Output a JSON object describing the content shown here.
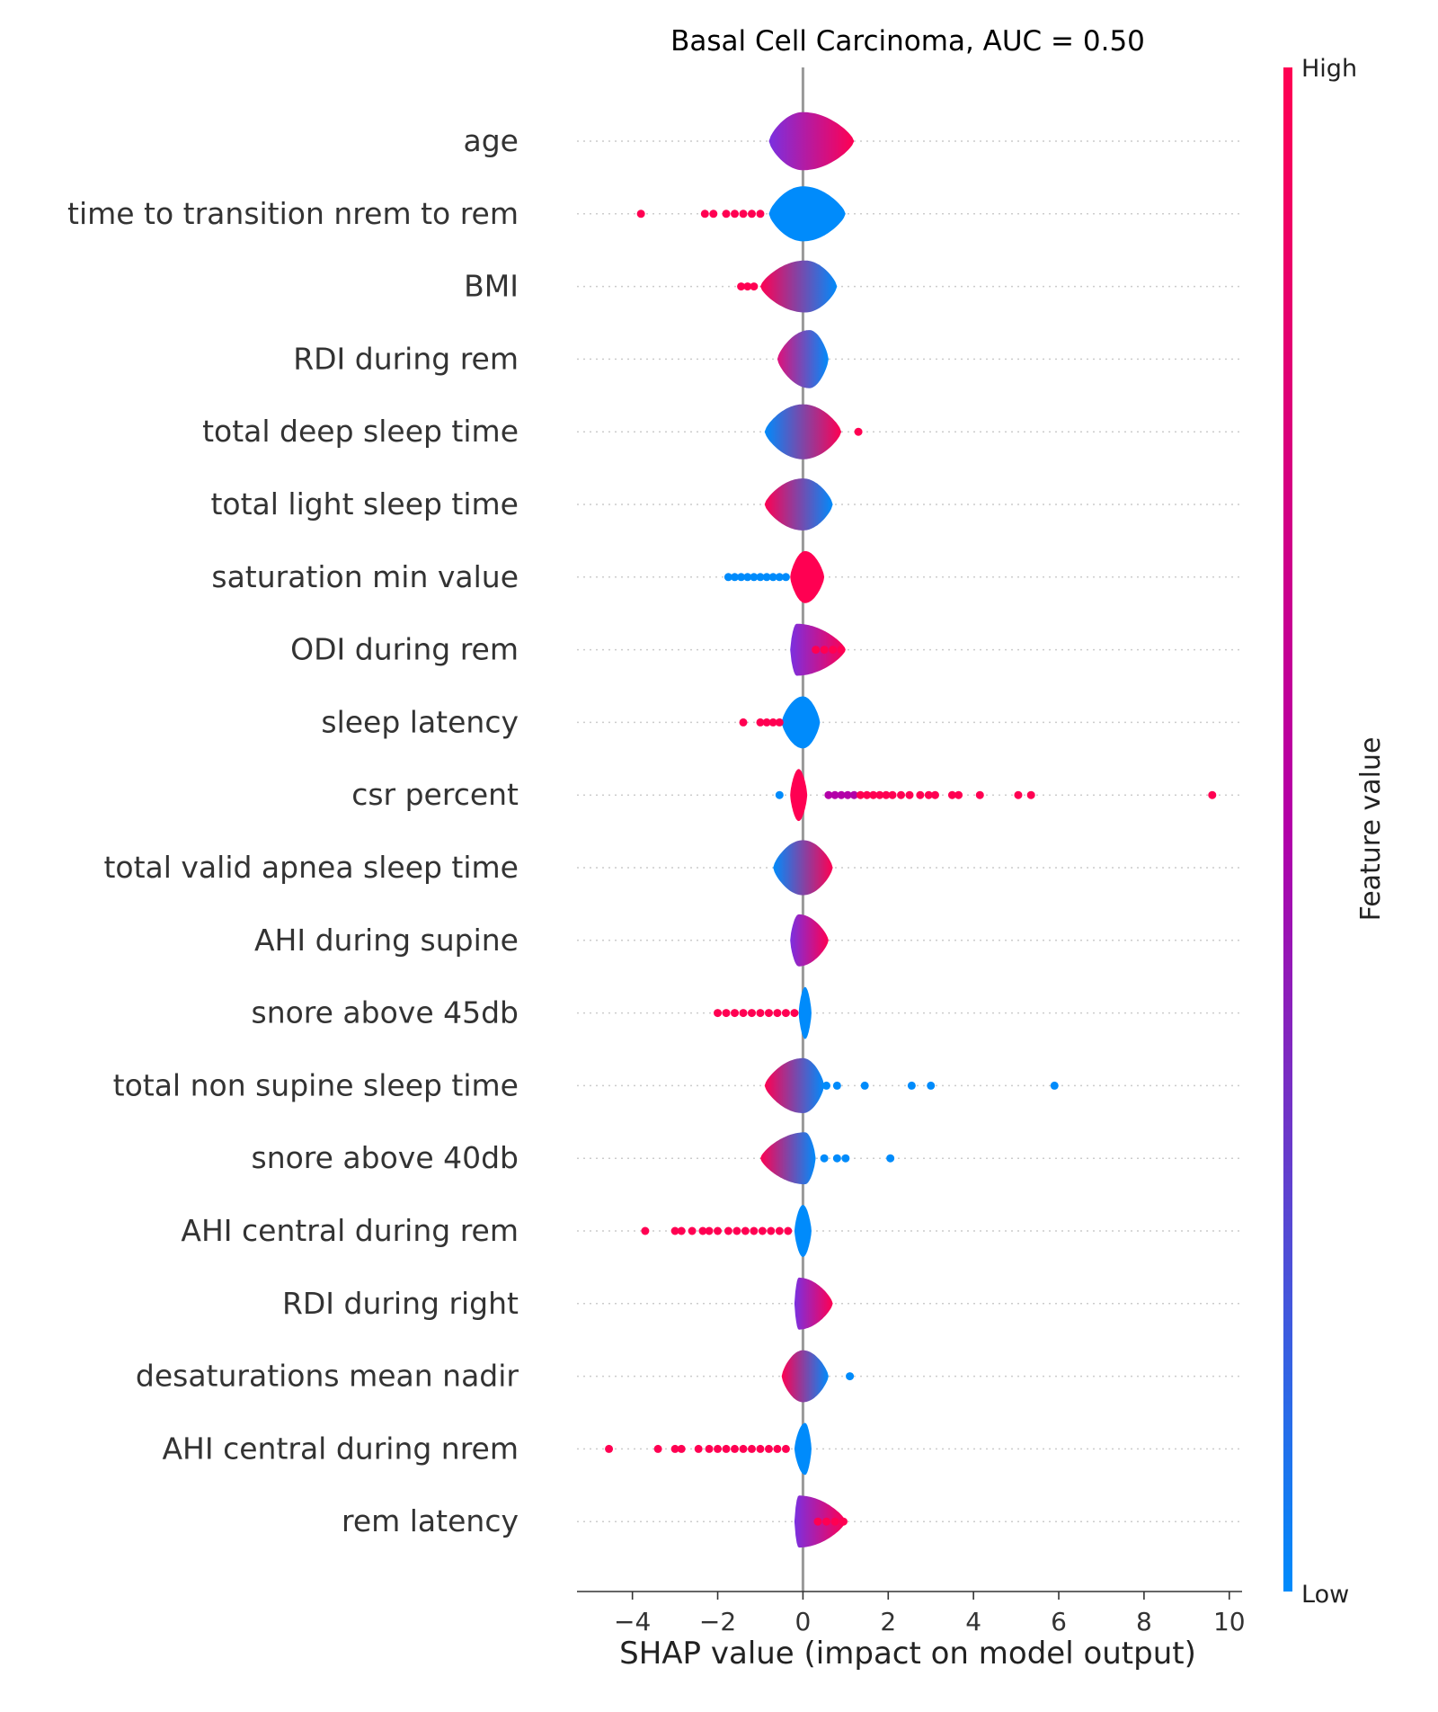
{
  "chart_data": {
    "type": "scatter",
    "subtype": "shap-beeswarm",
    "title": "Basal Cell Carcinoma, AUC =  0.50",
    "xlabel": "SHAP value (impact on model output)",
    "xlim": [
      -5.3,
      10.3
    ],
    "xticks": [
      {
        "value": -4,
        "label": "−4"
      },
      {
        "value": -2,
        "label": "−2"
      },
      {
        "value": 0,
        "label": "0"
      },
      {
        "value": 2,
        "label": "2"
      },
      {
        "value": 4,
        "label": "4"
      },
      {
        "value": 6,
        "label": "6"
      },
      {
        "value": 8,
        "label": "8"
      },
      {
        "value": 10,
        "label": "10"
      }
    ],
    "zero_line": true,
    "colorbar": {
      "label": "Feature value",
      "high_label": "High",
      "low_label": "Low",
      "high_color": "#ff0052",
      "mid_color": "#b300a8",
      "low_color": "#008bfb"
    },
    "features": [
      {
        "name": "age",
        "body": {
          "min": -0.8,
          "max": 1.2,
          "center": 0.0,
          "halfwidth": 0.95,
          "lean": 0.4,
          "left_color": "#7a30e0",
          "right_color": "#ff0052"
        },
        "points": []
      },
      {
        "name": "time to transition nrem to rem",
        "body": {
          "min": -0.8,
          "max": 1.0,
          "center": 0.0,
          "halfwidth": 0.9,
          "lean": 0.0,
          "left_color": "#008bfb",
          "right_color": "#008bfb"
        },
        "points": [
          {
            "x": -3.8,
            "c": "high"
          },
          {
            "x": -2.3,
            "c": "high"
          },
          {
            "x": -2.1,
            "c": "high"
          },
          {
            "x": -1.8,
            "c": "high"
          },
          {
            "x": -1.6,
            "c": "high"
          },
          {
            "x": -1.4,
            "c": "high"
          },
          {
            "x": -1.2,
            "c": "high"
          },
          {
            "x": -1.0,
            "c": "high"
          }
        ]
      },
      {
        "name": "BMI",
        "body": {
          "min": -1.0,
          "max": 0.8,
          "center": 0.05,
          "halfwidth": 0.85,
          "lean": 0.0,
          "left_color": "#ff0052",
          "right_color": "#008bfb"
        },
        "points": [
          {
            "x": -1.45,
            "c": "high"
          },
          {
            "x": -1.3,
            "c": "high"
          },
          {
            "x": -1.15,
            "c": "high"
          }
        ]
      },
      {
        "name": "RDI during rem",
        "body": {
          "min": -0.6,
          "max": 0.6,
          "center": 0.15,
          "halfwidth": 0.95,
          "lean": 0.0,
          "left_color": "#e0107a",
          "right_color": "#008bfb"
        },
        "points": []
      },
      {
        "name": "total deep sleep time",
        "body": {
          "min": -0.9,
          "max": 0.9,
          "center": 0.0,
          "halfwidth": 0.9,
          "lean": 0.0,
          "left_color": "#008bfb",
          "right_color": "#ff0052"
        },
        "points": [
          {
            "x": 1.3,
            "c": "high"
          }
        ]
      },
      {
        "name": "total light sleep time",
        "body": {
          "min": -0.9,
          "max": 0.7,
          "center": 0.0,
          "halfwidth": 0.85,
          "lean": 0.0,
          "left_color": "#ff0052",
          "right_color": "#008bfb"
        },
        "points": []
      },
      {
        "name": "saturation min value",
        "body": {
          "min": -0.3,
          "max": 0.5,
          "center": 0.05,
          "halfwidth": 0.85,
          "lean": 0.0,
          "left_color": "#ff0052",
          "right_color": "#ff0052"
        },
        "points": [
          {
            "x": -1.75,
            "c": "low"
          },
          {
            "x": -1.6,
            "c": "low"
          },
          {
            "x": -1.45,
            "c": "low"
          },
          {
            "x": -1.3,
            "c": "low"
          },
          {
            "x": -1.15,
            "c": "low"
          },
          {
            "x": -1.0,
            "c": "low"
          },
          {
            "x": -0.85,
            "c": "low"
          },
          {
            "x": -0.7,
            "c": "low"
          },
          {
            "x": -0.55,
            "c": "low"
          },
          {
            "x": -0.4,
            "c": "low"
          }
        ]
      },
      {
        "name": "ODI during rem",
        "body": {
          "min": -0.3,
          "max": 1.0,
          "center": -0.15,
          "halfwidth": 0.85,
          "lean": 0.0,
          "left_color": "#7a30e0",
          "right_color": "#ff0052"
        },
        "points": [
          {
            "x": 0.3,
            "c": "high"
          },
          {
            "x": 0.5,
            "c": "high"
          },
          {
            "x": 0.7,
            "c": "high"
          },
          {
            "x": 0.9,
            "c": "high"
          }
        ]
      },
      {
        "name": "sleep latency",
        "body": {
          "min": -0.5,
          "max": 0.4,
          "center": 0.0,
          "halfwidth": 0.85,
          "lean": 0.0,
          "left_color": "#008bfb",
          "right_color": "#008bfb"
        },
        "points": [
          {
            "x": -1.4,
            "c": "high"
          },
          {
            "x": -1.0,
            "c": "high"
          },
          {
            "x": -0.85,
            "c": "high"
          },
          {
            "x": -0.7,
            "c": "high"
          },
          {
            "x": -0.55,
            "c": "high"
          }
        ]
      },
      {
        "name": "csr percent",
        "body": {
          "min": -0.3,
          "max": 0.1,
          "center": -0.1,
          "halfwidth": 0.85,
          "lean": 0.0,
          "left_color": "#ff0052",
          "right_color": "#ff0052"
        },
        "points": [
          {
            "x": -0.55,
            "c": "low"
          },
          {
            "x": 0.6,
            "c": "mid"
          },
          {
            "x": 0.75,
            "c": "mid"
          },
          {
            "x": 0.9,
            "c": "mid"
          },
          {
            "x": 1.05,
            "c": "mid"
          },
          {
            "x": 1.2,
            "c": "mid"
          },
          {
            "x": 1.35,
            "c": "high"
          },
          {
            "x": 1.5,
            "c": "high"
          },
          {
            "x": 1.65,
            "c": "high"
          },
          {
            "x": 1.8,
            "c": "high"
          },
          {
            "x": 1.95,
            "c": "high"
          },
          {
            "x": 2.1,
            "c": "high"
          },
          {
            "x": 2.3,
            "c": "high"
          },
          {
            "x": 2.5,
            "c": "high"
          },
          {
            "x": 2.75,
            "c": "high"
          },
          {
            "x": 2.95,
            "c": "high"
          },
          {
            "x": 3.1,
            "c": "high"
          },
          {
            "x": 3.5,
            "c": "high"
          },
          {
            "x": 3.65,
            "c": "high"
          },
          {
            "x": 4.15,
            "c": "high"
          },
          {
            "x": 5.05,
            "c": "high"
          },
          {
            "x": 5.35,
            "c": "high"
          },
          {
            "x": 9.6,
            "c": "high"
          }
        ]
      },
      {
        "name": "total valid apnea sleep time",
        "body": {
          "min": -0.7,
          "max": 0.7,
          "center": 0.0,
          "halfwidth": 0.9,
          "lean": 0.0,
          "left_color": "#008bfb",
          "right_color": "#ff0052"
        },
        "points": []
      },
      {
        "name": "AHI during supine",
        "body": {
          "min": -0.3,
          "max": 0.6,
          "center": -0.1,
          "halfwidth": 0.85,
          "lean": 0.0,
          "left_color": "#7a30e0",
          "right_color": "#ff0052"
        },
        "points": []
      },
      {
        "name": "snore above 45db",
        "body": {
          "min": -0.1,
          "max": 0.2,
          "center": 0.05,
          "halfwidth": 0.85,
          "lean": 0.0,
          "left_color": "#008bfb",
          "right_color": "#008bfb"
        },
        "points": [
          {
            "x": -2.0,
            "c": "high"
          },
          {
            "x": -1.8,
            "c": "high"
          },
          {
            "x": -1.6,
            "c": "high"
          },
          {
            "x": -1.4,
            "c": "high"
          },
          {
            "x": -1.2,
            "c": "high"
          },
          {
            "x": -1.0,
            "c": "high"
          },
          {
            "x": -0.8,
            "c": "high"
          },
          {
            "x": -0.6,
            "c": "high"
          },
          {
            "x": -0.4,
            "c": "high"
          },
          {
            "x": -0.2,
            "c": "high"
          }
        ]
      },
      {
        "name": "total non supine sleep time",
        "body": {
          "min": -0.9,
          "max": 0.5,
          "center": 0.0,
          "halfwidth": 0.9,
          "lean": 0.0,
          "left_color": "#ff0052",
          "right_color": "#008bfb"
        },
        "points": [
          {
            "x": 0.55,
            "c": "low"
          },
          {
            "x": 0.8,
            "c": "low"
          },
          {
            "x": 1.45,
            "c": "low"
          },
          {
            "x": 2.55,
            "c": "low"
          },
          {
            "x": 3.0,
            "c": "low"
          },
          {
            "x": 5.9,
            "c": "low"
          }
        ]
      },
      {
        "name": "snore above 40db",
        "body": {
          "min": -1.0,
          "max": 0.3,
          "center": 0.05,
          "halfwidth": 0.85,
          "lean": 0.0,
          "left_color": "#ff0052",
          "right_color": "#008bfb"
        },
        "points": [
          {
            "x": 0.5,
            "c": "low"
          },
          {
            "x": 0.8,
            "c": "low"
          },
          {
            "x": 1.0,
            "c": "low"
          },
          {
            "x": 2.05,
            "c": "low"
          }
        ]
      },
      {
        "name": "AHI central during rem",
        "body": {
          "min": -0.2,
          "max": 0.2,
          "center": 0.0,
          "halfwidth": 0.85,
          "lean": 0.0,
          "left_color": "#008bfb",
          "right_color": "#008bfb"
        },
        "points": [
          {
            "x": -3.7,
            "c": "high"
          },
          {
            "x": -3.0,
            "c": "high"
          },
          {
            "x": -2.85,
            "c": "high"
          },
          {
            "x": -2.6,
            "c": "high"
          },
          {
            "x": -2.35,
            "c": "high"
          },
          {
            "x": -2.2,
            "c": "high"
          },
          {
            "x": -2.0,
            "c": "high"
          },
          {
            "x": -1.75,
            "c": "high"
          },
          {
            "x": -1.55,
            "c": "high"
          },
          {
            "x": -1.35,
            "c": "high"
          },
          {
            "x": -1.15,
            "c": "high"
          },
          {
            "x": -0.95,
            "c": "high"
          },
          {
            "x": -0.75,
            "c": "high"
          },
          {
            "x": -0.55,
            "c": "high"
          },
          {
            "x": -0.35,
            "c": "high"
          }
        ]
      },
      {
        "name": "RDI during right",
        "body": {
          "min": -0.2,
          "max": 0.7,
          "center": -0.1,
          "halfwidth": 0.85,
          "lean": 0.0,
          "left_color": "#7a30e0",
          "right_color": "#ff0052"
        },
        "points": []
      },
      {
        "name": "desaturations mean nadir",
        "body": {
          "min": -0.5,
          "max": 0.6,
          "center": 0.0,
          "halfwidth": 0.85,
          "lean": 0.0,
          "left_color": "#ff0052",
          "right_color": "#008bfb"
        },
        "points": [
          {
            "x": 1.1,
            "c": "low"
          }
        ]
      },
      {
        "name": "AHI central during nrem",
        "body": {
          "min": -0.2,
          "max": 0.2,
          "center": 0.05,
          "halfwidth": 0.85,
          "lean": 0.0,
          "left_color": "#008bfb",
          "right_color": "#008bfb"
        },
        "points": [
          {
            "x": -4.55,
            "c": "high"
          },
          {
            "x": -3.4,
            "c": "high"
          },
          {
            "x": -3.0,
            "c": "high"
          },
          {
            "x": -2.85,
            "c": "high"
          },
          {
            "x": -2.45,
            "c": "high"
          },
          {
            "x": -2.2,
            "c": "high"
          },
          {
            "x": -2.0,
            "c": "high"
          },
          {
            "x": -1.8,
            "c": "high"
          },
          {
            "x": -1.6,
            "c": "high"
          },
          {
            "x": -1.4,
            "c": "high"
          },
          {
            "x": -1.2,
            "c": "high"
          },
          {
            "x": -1.0,
            "c": "high"
          },
          {
            "x": -0.8,
            "c": "high"
          },
          {
            "x": -0.6,
            "c": "high"
          },
          {
            "x": -0.4,
            "c": "high"
          }
        ]
      },
      {
        "name": "rem latency",
        "body": {
          "min": -0.2,
          "max": 1.0,
          "center": -0.1,
          "halfwidth": 0.85,
          "lean": 0.0,
          "left_color": "#7a30e0",
          "right_color": "#ff0052"
        },
        "points": [
          {
            "x": 0.35,
            "c": "high"
          },
          {
            "x": 0.55,
            "c": "high"
          },
          {
            "x": 0.75,
            "c": "high"
          },
          {
            "x": 0.95,
            "c": "high"
          }
        ]
      }
    ]
  }
}
